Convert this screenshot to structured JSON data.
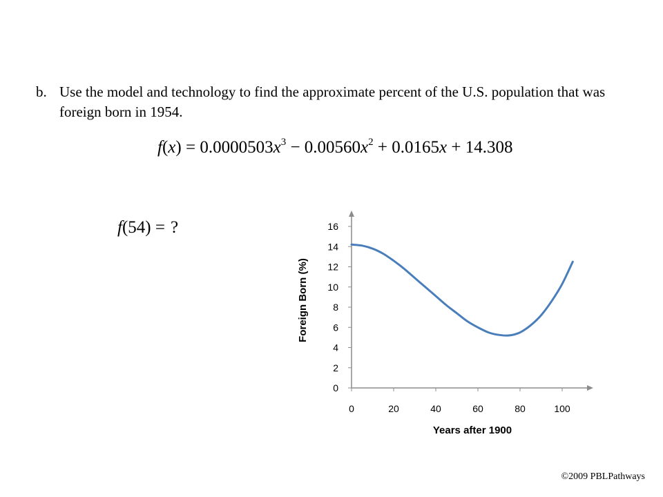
{
  "question": {
    "letter": "b.",
    "text": "Use the model and technology to find the approximate percent of the U.S. population that was foreign born in 1954."
  },
  "formula": {
    "lhs": "f",
    "arg": "x",
    "eq": "=",
    "c3": "0.0000503",
    "e3": "3",
    "op1": "−",
    "c2": "0.00560",
    "e2": "2",
    "op2": "+",
    "c1": "0.0165",
    "op3": "+",
    "c0": "14.308"
  },
  "evaluation": {
    "lhs": "f",
    "arg": "54",
    "eq": "=",
    "answer": "?"
  },
  "chart_data": {
    "type": "line",
    "xlabel": "Years after 1900",
    "ylabel": "Foreign Born (%)",
    "xlim": [
      0,
      115
    ],
    "ylim": [
      0,
      16.5
    ],
    "xticks": [
      0,
      20,
      40,
      60,
      80,
      100
    ],
    "yticks": [
      0,
      2,
      4,
      6,
      8,
      10,
      12,
      14,
      16
    ],
    "grid": false,
    "line_color": "#4a7ebb",
    "series": [
      {
        "x": [
          0,
          5,
          10,
          15,
          20,
          25,
          30,
          35,
          40,
          45,
          50,
          55,
          60,
          65,
          70,
          75,
          80,
          85,
          90,
          95,
          100,
          105
        ],
        "values": [
          14.2,
          14.1,
          13.8,
          13.3,
          12.6,
          11.8,
          10.9,
          10.0,
          9.1,
          8.2,
          7.4,
          6.6,
          6.0,
          5.5,
          5.25,
          5.2,
          5.5,
          6.2,
          7.2,
          8.6,
          10.3,
          12.5
        ]
      }
    ]
  },
  "footer": {
    "copyright": "2009 PBLPathways",
    "copyright_symbol": "©"
  }
}
